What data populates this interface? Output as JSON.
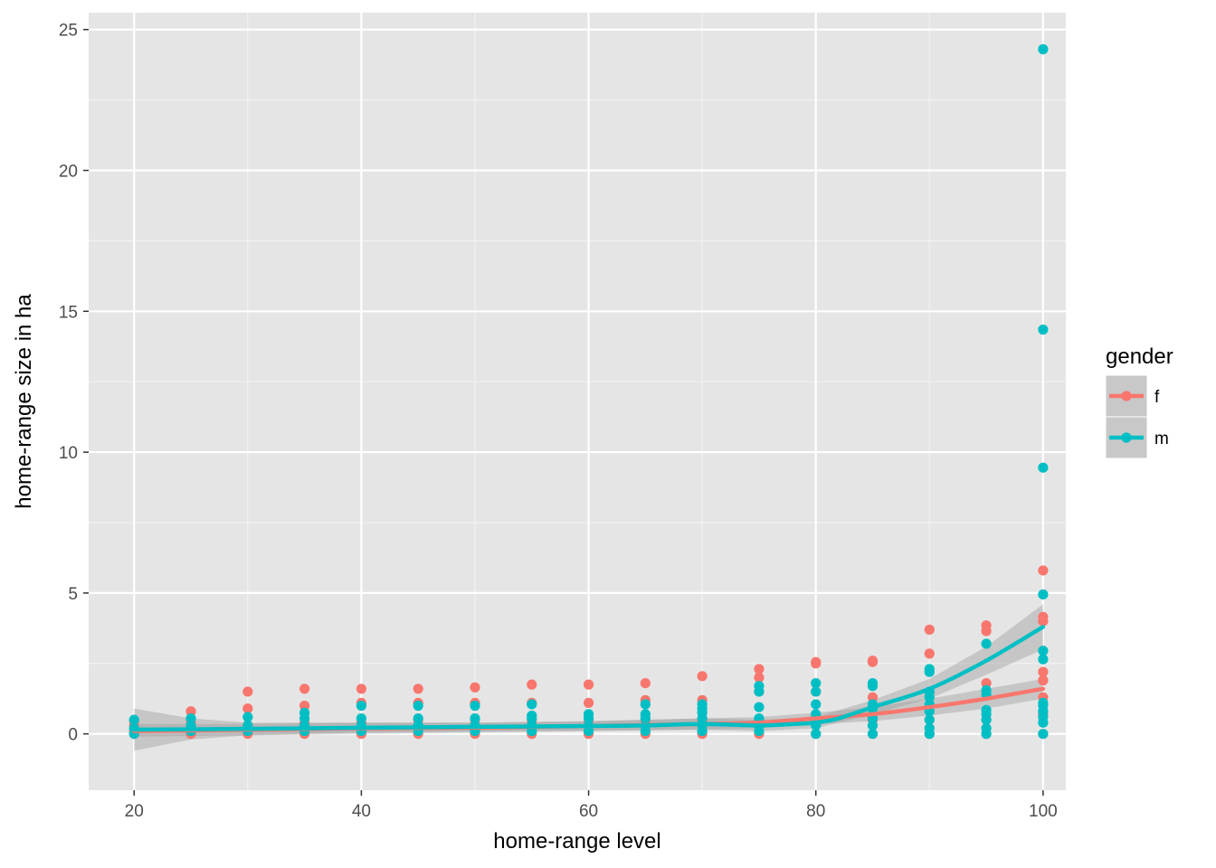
{
  "chart_data": {
    "type": "scatter",
    "title": "",
    "xlabel": "home-range level",
    "ylabel": "home-range size in ha",
    "xlim": [
      16,
      102
    ],
    "ylim": [
      -2,
      25.6
    ],
    "xticks": [
      20,
      40,
      60,
      80,
      100
    ],
    "yticks": [
      0,
      5,
      10,
      15,
      20,
      25
    ],
    "grid": true,
    "panel_background": "#e5e5e5",
    "legend": {
      "title": "gender",
      "placement": "right"
    },
    "series": [
      {
        "name": "f",
        "color": "#f8766d",
        "points": [
          [
            20,
            0.0
          ],
          [
            20,
            0.1
          ],
          [
            20,
            0.3
          ],
          [
            20,
            0.45
          ],
          [
            25,
            0.0
          ],
          [
            25,
            0.2
          ],
          [
            25,
            0.4
          ],
          [
            25,
            0.8
          ],
          [
            30,
            0.0
          ],
          [
            30,
            0.3
          ],
          [
            30,
            0.9
          ],
          [
            30,
            1.5
          ],
          [
            35,
            0.0
          ],
          [
            35,
            0.4
          ],
          [
            35,
            1.0
          ],
          [
            35,
            1.6
          ],
          [
            40,
            0.0
          ],
          [
            40,
            0.4
          ],
          [
            40,
            1.1
          ],
          [
            40,
            1.6
          ],
          [
            45,
            0.0
          ],
          [
            45,
            0.5
          ],
          [
            45,
            1.1
          ],
          [
            45,
            1.6
          ],
          [
            50,
            0.0
          ],
          [
            50,
            0.5
          ],
          [
            50,
            1.1
          ],
          [
            50,
            1.65
          ],
          [
            55,
            0.0
          ],
          [
            55,
            0.5
          ],
          [
            55,
            1.1
          ],
          [
            55,
            1.75
          ],
          [
            60,
            0.0
          ],
          [
            60,
            0.5
          ],
          [
            60,
            1.1
          ],
          [
            60,
            1.75
          ],
          [
            65,
            0.0
          ],
          [
            65,
            0.5
          ],
          [
            65,
            1.2
          ],
          [
            65,
            1.8
          ],
          [
            70,
            0.0
          ],
          [
            70,
            0.5
          ],
          [
            70,
            1.2
          ],
          [
            70,
            2.05
          ],
          [
            75,
            0.0
          ],
          [
            75,
            0.5
          ],
          [
            75,
            1.5
          ],
          [
            75,
            2.0
          ],
          [
            75,
            2.3
          ],
          [
            80,
            0.0
          ],
          [
            80,
            0.5
          ],
          [
            80,
            1.5
          ],
          [
            80,
            2.5
          ],
          [
            80,
            2.55
          ],
          [
            85,
            0.0
          ],
          [
            85,
            0.5
          ],
          [
            85,
            1.3
          ],
          [
            85,
            2.55
          ],
          [
            85,
            2.6
          ],
          [
            90,
            0.0
          ],
          [
            90,
            0.5
          ],
          [
            90,
            1.5
          ],
          [
            90,
            2.85
          ],
          [
            90,
            3.7
          ],
          [
            95,
            0.0
          ],
          [
            95,
            0.5
          ],
          [
            95,
            1.8
          ],
          [
            95,
            3.65
          ],
          [
            95,
            3.85
          ],
          [
            100,
            0.0
          ],
          [
            100,
            0.7
          ],
          [
            100,
            1.3
          ],
          [
            100,
            1.9
          ],
          [
            100,
            2.2
          ],
          [
            100,
            4.0
          ],
          [
            100,
            4.15
          ],
          [
            100,
            5.8
          ]
        ],
        "smooth": [
          [
            20,
            0.1
          ],
          [
            30,
            0.15
          ],
          [
            40,
            0.2
          ],
          [
            50,
            0.22
          ],
          [
            60,
            0.28
          ],
          [
            70,
            0.35
          ],
          [
            75,
            0.4
          ],
          [
            80,
            0.55
          ],
          [
            85,
            0.7
          ],
          [
            90,
            0.95
          ],
          [
            95,
            1.25
          ],
          [
            100,
            1.6
          ]
        ],
        "smooth_band": [
          [
            20,
            -0.1,
            0.35
          ],
          [
            30,
            -0.05,
            0.35
          ],
          [
            40,
            0.0,
            0.4
          ],
          [
            50,
            0.05,
            0.4
          ],
          [
            60,
            0.1,
            0.45
          ],
          [
            70,
            0.15,
            0.55
          ],
          [
            75,
            0.2,
            0.6
          ],
          [
            80,
            0.35,
            0.75
          ],
          [
            85,
            0.45,
            0.95
          ],
          [
            90,
            0.65,
            1.25
          ],
          [
            95,
            0.9,
            1.6
          ],
          [
            100,
            1.25,
            1.95
          ]
        ]
      },
      {
        "name": "m",
        "color": "#00bfc4",
        "points": [
          [
            20,
            0.0
          ],
          [
            20,
            0.2
          ],
          [
            20,
            0.5
          ],
          [
            25,
            0.1
          ],
          [
            25,
            0.3
          ],
          [
            25,
            0.55
          ],
          [
            30,
            0.1
          ],
          [
            30,
            0.3
          ],
          [
            30,
            0.6
          ],
          [
            35,
            0.1
          ],
          [
            35,
            0.3
          ],
          [
            35,
            0.55
          ],
          [
            35,
            0.75
          ],
          [
            40,
            0.1
          ],
          [
            40,
            0.3
          ],
          [
            40,
            0.55
          ],
          [
            40,
            1.0
          ],
          [
            45,
            0.1
          ],
          [
            45,
            0.3
          ],
          [
            45,
            0.55
          ],
          [
            45,
            1.0
          ],
          [
            50,
            0.1
          ],
          [
            50,
            0.3
          ],
          [
            50,
            0.55
          ],
          [
            50,
            1.0
          ],
          [
            55,
            0.1
          ],
          [
            55,
            0.3
          ],
          [
            55,
            0.55
          ],
          [
            55,
            0.65
          ],
          [
            55,
            1.05
          ],
          [
            60,
            0.1
          ],
          [
            60,
            0.3
          ],
          [
            60,
            0.55
          ],
          [
            60,
            0.7
          ],
          [
            65,
            0.1
          ],
          [
            65,
            0.3
          ],
          [
            65,
            0.55
          ],
          [
            65,
            0.7
          ],
          [
            65,
            1.05
          ],
          [
            70,
            0.1
          ],
          [
            70,
            0.3
          ],
          [
            70,
            0.55
          ],
          [
            70,
            0.75
          ],
          [
            70,
            0.9
          ],
          [
            70,
            1.05
          ],
          [
            75,
            0.1
          ],
          [
            75,
            0.3
          ],
          [
            75,
            0.55
          ],
          [
            75,
            0.95
          ],
          [
            75,
            1.5
          ],
          [
            75,
            1.7
          ],
          [
            80,
            0.0
          ],
          [
            80,
            0.3
          ],
          [
            80,
            0.55
          ],
          [
            80,
            0.7
          ],
          [
            80,
            1.05
          ],
          [
            80,
            1.5
          ],
          [
            80,
            1.8
          ],
          [
            85,
            0.0
          ],
          [
            85,
            0.3
          ],
          [
            85,
            0.55
          ],
          [
            85,
            0.9
          ],
          [
            85,
            1.05
          ],
          [
            85,
            1.7
          ],
          [
            85,
            1.8
          ],
          [
            90,
            0.0
          ],
          [
            90,
            0.2
          ],
          [
            90,
            0.5
          ],
          [
            90,
            0.8
          ],
          [
            90,
            1.05
          ],
          [
            90,
            1.3
          ],
          [
            90,
            1.5
          ],
          [
            90,
            2.2
          ],
          [
            90,
            2.3
          ],
          [
            95,
            0.0
          ],
          [
            95,
            0.2
          ],
          [
            95,
            0.5
          ],
          [
            95,
            0.7
          ],
          [
            95,
            0.85
          ],
          [
            95,
            1.4
          ],
          [
            95,
            1.55
          ],
          [
            95,
            3.2
          ],
          [
            100,
            0.0
          ],
          [
            100,
            0.4
          ],
          [
            100,
            0.6
          ],
          [
            100,
            0.8
          ],
          [
            100,
            1.0
          ],
          [
            100,
            1.1
          ],
          [
            100,
            2.65
          ],
          [
            100,
            2.95
          ],
          [
            100,
            4.95
          ],
          [
            100,
            9.45
          ],
          [
            100,
            14.35
          ],
          [
            100,
            24.3
          ]
        ],
        "smooth": [
          [
            20,
            0.15
          ],
          [
            30,
            0.18
          ],
          [
            40,
            0.22
          ],
          [
            50,
            0.25
          ],
          [
            60,
            0.28
          ],
          [
            65,
            0.3
          ],
          [
            70,
            0.35
          ],
          [
            75,
            0.3
          ],
          [
            78,
            0.35
          ],
          [
            80,
            0.4
          ],
          [
            82,
            0.55
          ],
          [
            85,
            0.95
          ],
          [
            90,
            1.6
          ],
          [
            95,
            2.6
          ],
          [
            100,
            3.8
          ]
        ],
        "smooth_band": [
          [
            20,
            -0.6,
            0.9
          ],
          [
            25,
            -0.2,
            0.55
          ],
          [
            30,
            -0.05,
            0.4
          ],
          [
            40,
            0.05,
            0.4
          ],
          [
            50,
            0.1,
            0.4
          ],
          [
            60,
            0.12,
            0.45
          ],
          [
            70,
            0.15,
            0.55
          ],
          [
            75,
            0.1,
            0.5
          ],
          [
            80,
            0.2,
            0.6
          ],
          [
            85,
            0.7,
            1.2
          ],
          [
            90,
            1.25,
            1.95
          ],
          [
            95,
            2.1,
            3.1
          ],
          [
            100,
            3.0,
            4.6
          ]
        ]
      }
    ]
  }
}
